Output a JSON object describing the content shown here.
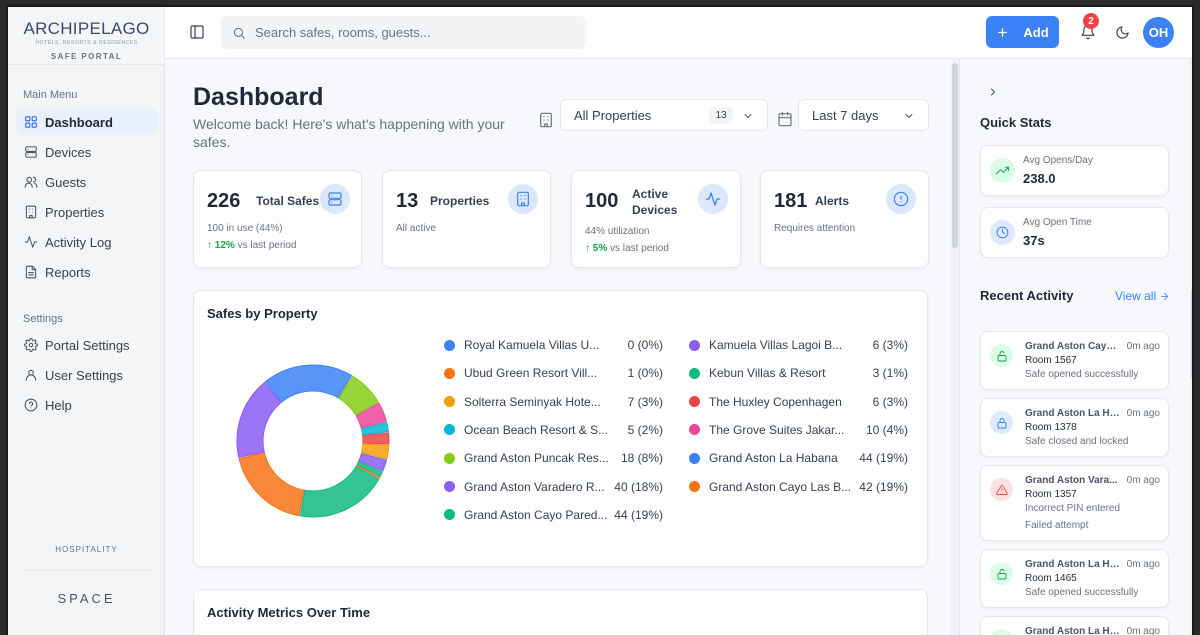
{
  "brand": {
    "name": "ARCHIPELAGO",
    "tagline": "HOTELS, RESORTS & RESIDENCES",
    "portal": "SAFE PORTAL"
  },
  "sidebar": {
    "main_menu_label": "Main Menu",
    "main_items": [
      {
        "label": "Dashboard",
        "icon": "grid-icon",
        "active": true
      },
      {
        "label": "Devices",
        "icon": "server-icon"
      },
      {
        "label": "Guests",
        "icon": "users-icon"
      },
      {
        "label": "Properties",
        "icon": "building-icon"
      },
      {
        "label": "Activity Log",
        "icon": "activity-icon"
      },
      {
        "label": "Reports",
        "icon": "file-icon"
      }
    ],
    "settings_label": "Settings",
    "settings_items": [
      {
        "label": "Portal Settings",
        "icon": "gear-icon"
      },
      {
        "label": "User Settings",
        "icon": "user-icon"
      },
      {
        "label": "Help",
        "icon": "help-icon"
      }
    ],
    "footer_hospitality": "HOSPITALITY",
    "footer_space": "SPACE"
  },
  "topbar": {
    "search_placeholder": "Search safes, rooms, guests...",
    "add_label": "Add",
    "notification_count": "2",
    "avatar_initials": "OH"
  },
  "header": {
    "title": "Dashboard",
    "subtitle": "Welcome back! Here's what's happening with your safes.",
    "property_filter": "All Properties",
    "property_count": "13",
    "date_filter": "Last 7 days"
  },
  "stats": [
    {
      "value": "226",
      "label": "Total Safes",
      "sub": "100 in use (44%)",
      "trend": "↑ 12%",
      "trend_suffix": "vs last period"
    },
    {
      "value": "13",
      "label": "Properties",
      "sub": "All active"
    },
    {
      "value": "100",
      "label": "Active Devices",
      "sub": "44% utilization",
      "trend": "↑ 5%",
      "trend_suffix": "vs last period"
    },
    {
      "value": "181",
      "label": "Alerts",
      "sub": "Requires attention"
    }
  ],
  "safes_by_property": {
    "title": "Safes by Property",
    "left": [
      {
        "name": "Royal Kamuela Villas U...",
        "value": "0 (0%)",
        "color": "#3b82f6"
      },
      {
        "name": "Ubud Green Resort Vill...",
        "value": "1 (0%)",
        "color": "#f97316"
      },
      {
        "name": "Solterra Seminyak Hote...",
        "value": "7 (3%)",
        "color": "#f59e0b"
      },
      {
        "name": "Ocean Beach Resort & S...",
        "value": "5 (2%)",
        "color": "#06b6d4"
      },
      {
        "name": "Grand Aston Puncak Res...",
        "value": "18 (8%)",
        "color": "#84cc16"
      },
      {
        "name": "Grand Aston Varadero R...",
        "value": "40 (18%)",
        "color": "#8b5cf6"
      },
      {
        "name": "Grand Aston Cayo Pared...",
        "value": "44 (19%)",
        "color": "#10b981"
      }
    ],
    "right": [
      {
        "name": "Kamuela Villas Lagoi B...",
        "value": "6 (3%)",
        "color": "#8b5cf6"
      },
      {
        "name": "Kebun Villas & Resort",
        "value": "3 (1%)",
        "color": "#10b981"
      },
      {
        "name": "The Huxley Copenhagen",
        "value": "6 (3%)",
        "color": "#ef4444"
      },
      {
        "name": "The Grove Suites Jakar...",
        "value": "10 (4%)",
        "color": "#ec4899"
      },
      {
        "name": "Grand Aston La Habana",
        "value": "44 (19%)",
        "color": "#3b82f6"
      },
      {
        "name": "Grand Aston Cayo Las B...",
        "value": "42 (19%)",
        "color": "#f97316"
      }
    ]
  },
  "chart_data": {
    "type": "pie",
    "donut": true,
    "categories": [
      "Grand Aston Cayo Pared...",
      "Grand Aston Cayo Las B...",
      "Grand Aston Varadero R...",
      "Grand Aston La Habana",
      "Grand Aston Puncak Res...",
      "The Grove Suites Jakar...",
      "Ocean Beach Resort & S...",
      "The Huxley Copenhagen",
      "Solterra Seminyak Hote...",
      "Kamuela Villas Lagoi B...",
      "Kebun Villas & Resort",
      "Ubud Green Resort Vill...",
      "Royal Kamuela Villas U..."
    ],
    "values": [
      44,
      42,
      40,
      44,
      18,
      10,
      5,
      6,
      7,
      6,
      3,
      1,
      0
    ],
    "colors": [
      "#10b981",
      "#f97316",
      "#8b5cf6",
      "#3b82f6",
      "#84cc16",
      "#ec4899",
      "#06b6d4",
      "#ef4444",
      "#f59e0b",
      "#8b5cf6",
      "#10b981",
      "#f97316",
      "#3b82f6"
    ]
  },
  "metrics": {
    "title": "Activity Metrics Over Time"
  },
  "quick_stats": {
    "title": "Quick Stats",
    "items": [
      {
        "label": "Avg Opens/Day",
        "value": "238.0",
        "icon": "trending-up-icon",
        "color": "#16a34a",
        "bg": "#dcfce7"
      },
      {
        "label": "Avg Open Time",
        "value": "37s",
        "icon": "clock-icon",
        "color": "#3b82f6",
        "bg": "#dbeafe"
      }
    ]
  },
  "recent_activity": {
    "title": "Recent Activity",
    "view_all": "View all",
    "items": [
      {
        "property": "Grand Aston Cayo ...",
        "time": "0m ago",
        "room": "Room 1567",
        "desc": "Safe opened successfully",
        "extra": "",
        "type": "unlock"
      },
      {
        "property": "Grand Aston La Ha...",
        "time": "0m ago",
        "room": "Room 1378",
        "desc": "Safe closed and locked",
        "extra": "",
        "type": "lock"
      },
      {
        "property": "Grand Aston Vara...",
        "time": "0m ago",
        "room": "Room 1357",
        "desc": "Incorrect PIN entered",
        "extra": "Failed attempt",
        "type": "alert"
      },
      {
        "property": "Grand Aston La Ha...",
        "time": "0m ago",
        "room": "Room 1465",
        "desc": "Safe opened successfully",
        "extra": "",
        "type": "unlock"
      },
      {
        "property": "Grand Aston La Ha...",
        "time": "0m ago",
        "room": "",
        "desc": "",
        "extra": "",
        "type": "unlock"
      }
    ]
  }
}
